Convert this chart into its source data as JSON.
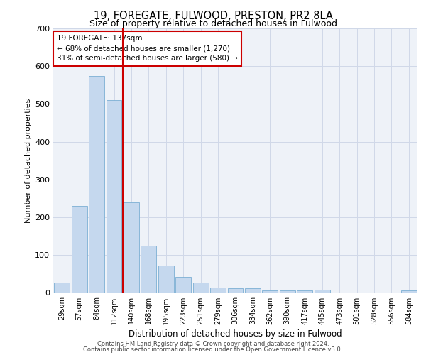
{
  "title_line1": "19, FOREGATE, FULWOOD, PRESTON, PR2 8LA",
  "title_line2": "Size of property relative to detached houses in Fulwood",
  "xlabel": "Distribution of detached houses by size in Fulwood",
  "ylabel": "Number of detached properties",
  "categories": [
    "29sqm",
    "57sqm",
    "84sqm",
    "112sqm",
    "140sqm",
    "168sqm",
    "195sqm",
    "223sqm",
    "251sqm",
    "279sqm",
    "306sqm",
    "334sqm",
    "362sqm",
    "390sqm",
    "417sqm",
    "445sqm",
    "473sqm",
    "501sqm",
    "528sqm",
    "556sqm",
    "584sqm"
  ],
  "values": [
    27,
    230,
    575,
    510,
    240,
    125,
    72,
    42,
    27,
    15,
    12,
    12,
    7,
    6,
    6,
    8,
    0,
    0,
    0,
    0,
    7
  ],
  "bar_color": "#c5d8ee",
  "bar_edge_color": "#7bafd4",
  "grid_color": "#d0d8e8",
  "background_color": "#eef2f8",
  "annotation_text_line1": "19 FOREGATE: 137sqm",
  "annotation_text_line2": "← 68% of detached houses are smaller (1,270)",
  "annotation_text_line3": "31% of semi-detached houses are larger (580) →",
  "annotation_box_facecolor": "#ffffff",
  "annotation_box_edgecolor": "#cc0000",
  "vline_color": "#cc0000",
  "footer_line1": "Contains HM Land Registry data © Crown copyright and database right 2024.",
  "footer_line2": "Contains public sector information licensed under the Open Government Licence v3.0.",
  "ylim": [
    0,
    700
  ],
  "vline_idx": 4
}
